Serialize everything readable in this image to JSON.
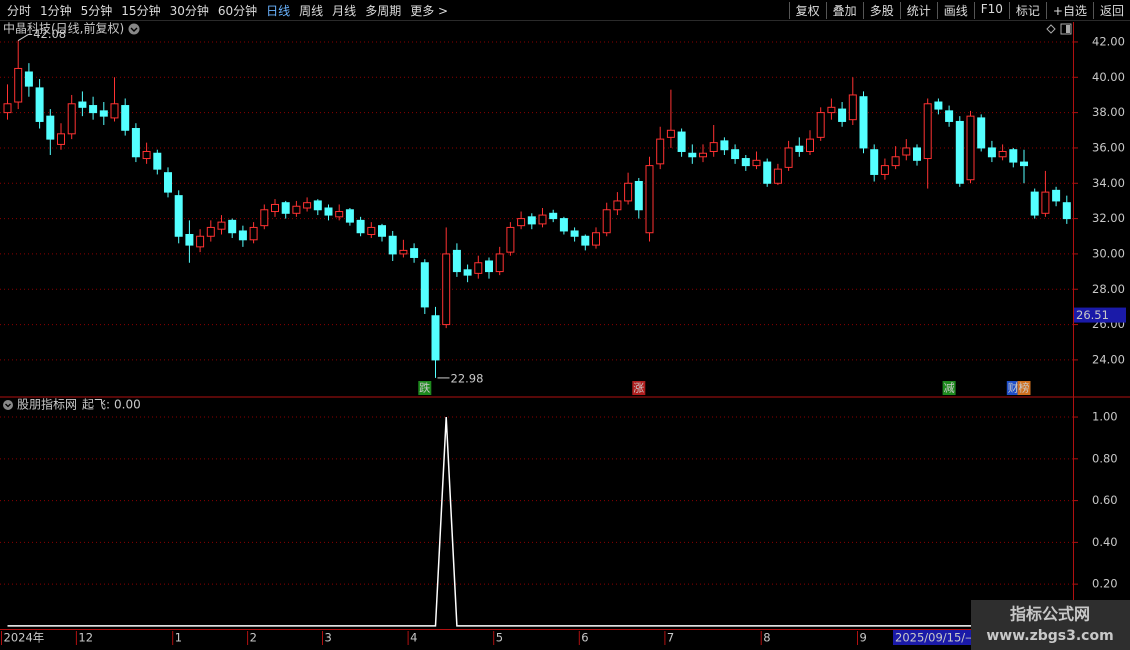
{
  "toolbar": {
    "left": [
      "分时",
      "1分钟",
      "5分钟",
      "15分钟",
      "30分钟",
      "60分钟",
      "日线",
      "周线",
      "月线",
      "多周期",
      "更多 >"
    ],
    "active_index": 6,
    "right": [
      "复权",
      "叠加",
      "多股",
      "统计",
      "画线",
      "F10",
      "标记",
      "+自选",
      "返回"
    ]
  },
  "chart_data": [
    {
      "type": "candlestick",
      "title": "中晶科技(日线,前复权)",
      "up_color": "#ff3232",
      "down_color": "#54ffff",
      "grid": true,
      "ylim": [
        21.9,
        43.13
      ],
      "yticks": [
        {
          "value": 24,
          "label": "24.00"
        },
        {
          "value": 26,
          "label": "26.00"
        },
        {
          "value": 28,
          "label": "28.00"
        },
        {
          "value": 30,
          "label": "30.00"
        },
        {
          "value": 32,
          "label": "32.00"
        },
        {
          "value": 34,
          "label": "34.00"
        },
        {
          "value": 36,
          "label": "36.00"
        },
        {
          "value": 38,
          "label": "38.00"
        },
        {
          "value": 40,
          "label": "40.00"
        },
        {
          "value": 42,
          "label": "42.00"
        }
      ],
      "categories": [
        "2024年",
        null,
        null,
        null,
        null,
        null,
        null,
        "12",
        null,
        null,
        null,
        null,
        null,
        null,
        null,
        null,
        "1",
        null,
        null,
        null,
        null,
        null,
        null,
        "2",
        null,
        null,
        null,
        null,
        null,
        null,
        "3",
        null,
        null,
        null,
        null,
        null,
        null,
        null,
        "4",
        null,
        null,
        null,
        null,
        null,
        null,
        null,
        "5",
        null,
        null,
        null,
        null,
        null,
        null,
        null,
        "6",
        null,
        null,
        null,
        null,
        null,
        null,
        null,
        "7",
        null,
        null,
        null,
        null,
        null,
        null,
        null,
        null,
        "8",
        null,
        null,
        null,
        null,
        null,
        null,
        null,
        null,
        "9",
        null,
        null,
        null,
        null,
        null,
        null,
        null,
        null,
        null,
        null,
        null,
        null,
        null,
        null,
        null,
        null,
        null,
        null,
        null
      ],
      "candles": [
        [
          38.0,
          39.6,
          37.6,
          38.5
        ],
        [
          38.6,
          42.08,
          38.2,
          40.5
        ],
        [
          40.3,
          40.8,
          38.9,
          39.5
        ],
        [
          39.4,
          39.9,
          37.1,
          37.5
        ],
        [
          37.8,
          38.2,
          35.6,
          36.5
        ],
        [
          36.2,
          37.4,
          35.9,
          36.8
        ],
        [
          36.8,
          39.0,
          36.5,
          38.5
        ],
        [
          38.6,
          39.2,
          37.8,
          38.3
        ],
        [
          38.4,
          38.9,
          37.6,
          38.0
        ],
        [
          38.1,
          38.6,
          37.3,
          37.8
        ],
        [
          37.7,
          40.0,
          37.5,
          38.5
        ],
        [
          38.4,
          38.8,
          36.7,
          37.0
        ],
        [
          37.1,
          37.4,
          35.2,
          35.5
        ],
        [
          35.4,
          36.3,
          35.1,
          35.8
        ],
        [
          35.7,
          35.9,
          34.5,
          34.8
        ],
        [
          34.6,
          34.9,
          33.2,
          33.5
        ],
        [
          33.3,
          33.6,
          30.6,
          31.0
        ],
        [
          31.1,
          31.9,
          29.5,
          30.5
        ],
        [
          30.4,
          31.4,
          30.1,
          31.0
        ],
        [
          31.0,
          31.9,
          30.7,
          31.5
        ],
        [
          31.4,
          32.2,
          31.1,
          31.8
        ],
        [
          31.9,
          32.0,
          30.9,
          31.2
        ],
        [
          31.3,
          31.6,
          30.4,
          30.8
        ],
        [
          30.8,
          31.8,
          30.6,
          31.5
        ],
        [
          31.6,
          32.8,
          31.4,
          32.5
        ],
        [
          32.4,
          33.1,
          32.1,
          32.8
        ],
        [
          32.9,
          33.0,
          32.0,
          32.3
        ],
        [
          32.3,
          33.0,
          32.1,
          32.7
        ],
        [
          32.6,
          33.2,
          32.4,
          32.9
        ],
        [
          33.0,
          33.1,
          32.2,
          32.5
        ],
        [
          32.6,
          32.8,
          31.9,
          32.2
        ],
        [
          32.1,
          32.8,
          31.9,
          32.4
        ],
        [
          32.5,
          32.6,
          31.6,
          31.8
        ],
        [
          31.9,
          32.1,
          31.0,
          31.2
        ],
        [
          31.1,
          31.8,
          30.9,
          31.5
        ],
        [
          31.6,
          31.7,
          30.7,
          31.0
        ],
        [
          31.0,
          31.3,
          29.6,
          30.0
        ],
        [
          30.0,
          30.8,
          29.8,
          30.2
        ],
        [
          30.3,
          30.6,
          29.5,
          29.8
        ],
        [
          29.5,
          29.7,
          26.6,
          27.0
        ],
        [
          26.5,
          27.0,
          22.98,
          24.0
        ],
        [
          26.0,
          31.5,
          25.8,
          30.0
        ],
        [
          30.2,
          30.6,
          28.7,
          29.0
        ],
        [
          29.1,
          29.4,
          28.4,
          28.8
        ],
        [
          28.9,
          29.9,
          28.6,
          29.5
        ],
        [
          29.6,
          29.8,
          28.6,
          29.0
        ],
        [
          29.0,
          30.4,
          28.8,
          30.0
        ],
        [
          30.1,
          31.8,
          29.9,
          31.5
        ],
        [
          31.6,
          32.4,
          31.4,
          32.0
        ],
        [
          32.1,
          32.3,
          31.4,
          31.7
        ],
        [
          31.7,
          32.6,
          31.5,
          32.2
        ],
        [
          32.3,
          32.5,
          31.8,
          32.0
        ],
        [
          32.0,
          32.1,
          31.1,
          31.3
        ],
        [
          31.3,
          31.5,
          30.7,
          31.0
        ],
        [
          31.0,
          31.1,
          30.2,
          30.5
        ],
        [
          30.5,
          31.5,
          30.3,
          31.2
        ],
        [
          31.2,
          32.9,
          31.0,
          32.5
        ],
        [
          32.5,
          33.5,
          32.2,
          33.0
        ],
        [
          33.0,
          34.6,
          32.8,
          34.0
        ],
        [
          34.1,
          34.3,
          32.0,
          32.5
        ],
        [
          31.2,
          35.5,
          30.7,
          35.0
        ],
        [
          35.1,
          37.2,
          34.8,
          36.5
        ],
        [
          36.6,
          39.3,
          36.0,
          37.0
        ],
        [
          36.9,
          37.1,
          35.5,
          35.8
        ],
        [
          35.7,
          36.2,
          35.1,
          35.5
        ],
        [
          35.5,
          36.2,
          35.2,
          35.7
        ],
        [
          35.8,
          37.3,
          35.5,
          36.3
        ],
        [
          36.4,
          36.6,
          35.6,
          35.9
        ],
        [
          35.9,
          36.2,
          35.1,
          35.4
        ],
        [
          35.4,
          35.6,
          34.7,
          35.0
        ],
        [
          35.0,
          35.8,
          34.8,
          35.3
        ],
        [
          35.2,
          35.4,
          33.8,
          34.0
        ],
        [
          34.0,
          35.1,
          33.9,
          34.8
        ],
        [
          34.9,
          36.4,
          34.7,
          36.0
        ],
        [
          36.1,
          36.6,
          35.5,
          35.8
        ],
        [
          35.8,
          37.0,
          35.6,
          36.5
        ],
        [
          36.6,
          38.3,
          36.4,
          38.0
        ],
        [
          38.0,
          38.8,
          37.6,
          38.3
        ],
        [
          38.2,
          38.6,
          37.2,
          37.5
        ],
        [
          37.6,
          40.0,
          37.3,
          39.0
        ],
        [
          38.9,
          39.2,
          35.7,
          36.0
        ],
        [
          35.9,
          36.2,
          34.1,
          34.5
        ],
        [
          34.5,
          35.4,
          34.2,
          35.0
        ],
        [
          35.0,
          36.1,
          34.8,
          35.5
        ],
        [
          35.6,
          36.5,
          35.3,
          36.0
        ],
        [
          36.0,
          36.2,
          35.0,
          35.3
        ],
        [
          35.4,
          38.8,
          33.7,
          38.5
        ],
        [
          38.6,
          38.8,
          37.9,
          38.2
        ],
        [
          38.1,
          38.4,
          37.2,
          37.5
        ],
        [
          37.5,
          37.8,
          33.8,
          34.0
        ],
        [
          34.2,
          38.1,
          34.0,
          37.8
        ],
        [
          37.7,
          37.9,
          35.8,
          36.0
        ],
        [
          36.0,
          36.4,
          35.2,
          35.5
        ],
        [
          35.5,
          36.2,
          35.3,
          35.8
        ],
        [
          35.9,
          36.0,
          34.9,
          35.2
        ],
        [
          35.2,
          35.9,
          34.0,
          35.0
        ],
        [
          33.5,
          33.7,
          32.0,
          32.2
        ],
        [
          32.3,
          34.7,
          32.1,
          33.5
        ],
        [
          33.6,
          33.8,
          32.7,
          33.0
        ],
        [
          32.9,
          33.3,
          31.7,
          32.0
        ]
      ],
      "high_annotation": 42.08,
      "low_annotation": 22.98,
      "events": [
        null,
        null,
        null,
        null,
        null,
        null,
        null,
        null,
        null,
        null,
        null,
        null,
        null,
        null,
        null,
        null,
        null,
        null,
        null,
        null,
        null,
        null,
        null,
        null,
        null,
        null,
        null,
        null,
        null,
        null,
        null,
        null,
        null,
        null,
        null,
        null,
        null,
        null,
        null,
        {
          "label": "跌",
          "color": "#1e8a1e"
        },
        null,
        null,
        null,
        null,
        null,
        null,
        null,
        null,
        null,
        null,
        null,
        null,
        null,
        null,
        null,
        null,
        null,
        null,
        null,
        {
          "label": "涨",
          "color": "#b01e1e"
        },
        null,
        null,
        null,
        null,
        null,
        null,
        null,
        null,
        null,
        null,
        null,
        null,
        null,
        null,
        null,
        null,
        null,
        null,
        null,
        null,
        null,
        null,
        null,
        null,
        null,
        null,
        null,
        null,
        {
          "label": "减",
          "color": "#1e8a1e"
        },
        null,
        null,
        null,
        null,
        null,
        {
          "label": "财",
          "color": "#1e4ec8"
        },
        {
          "label": "榜",
          "color": "#d0701e"
        },
        null,
        null,
        null,
        null
      ],
      "cursor_price": 26.51
    },
    {
      "type": "line",
      "title": "股朋指标网",
      "separator": ":",
      "grid": true,
      "ylim": [
        -0.01,
        1.096
      ],
      "yticks": [
        {
          "value": 0.2,
          "label": "0.20"
        },
        {
          "value": 0.4,
          "label": "0.40"
        },
        {
          "value": 0.6,
          "label": "0.60"
        },
        {
          "value": 0.8,
          "label": "0.80"
        },
        {
          "value": 1,
          "label": "1.00"
        }
      ],
      "series": [
        {
          "name": "起飞",
          "color": "#ffffff",
          "current_value_label": "0.00",
          "values": [
            0,
            0,
            0,
            0,
            0,
            0,
            0,
            0,
            0,
            0,
            0,
            0,
            0,
            0,
            0,
            0,
            0,
            0,
            0,
            0,
            0,
            0,
            0,
            0,
            0,
            0,
            0,
            0,
            0,
            0,
            0,
            0,
            0,
            0,
            0,
            0,
            0,
            0,
            0,
            0,
            0,
            1,
            0,
            0,
            0,
            0,
            0,
            0,
            0,
            0,
            0,
            0,
            0,
            0,
            0,
            0,
            0,
            0,
            0,
            0,
            0,
            0,
            0,
            0,
            0,
            0,
            0,
            0,
            0,
            0,
            0,
            0,
            0,
            0,
            0,
            0,
            0,
            0,
            0,
            0,
            0,
            0,
            0,
            0,
            0,
            0,
            0,
            0,
            0,
            0,
            0,
            0,
            0,
            0,
            0,
            0,
            0,
            0,
            0,
            0
          ]
        }
      ]
    }
  ],
  "cursor_date": "2025/09/15/—",
  "watermark": {
    "title": "指标公式网",
    "url": "www.zbgs3.com"
  }
}
